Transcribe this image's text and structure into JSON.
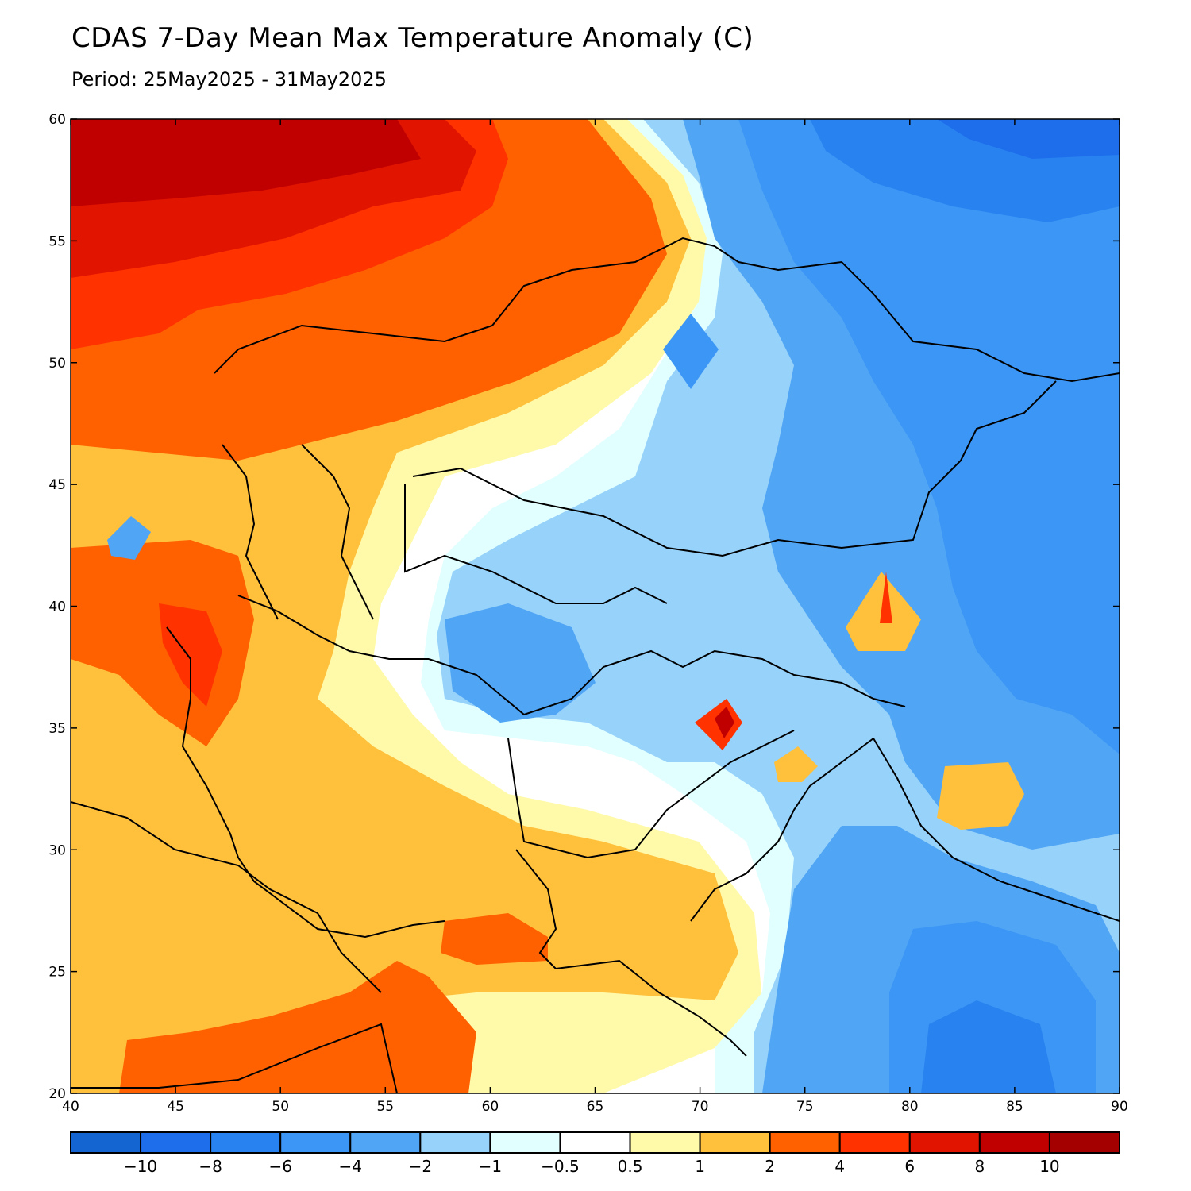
{
  "title": "CDAS 7-Day Mean Max Temperature Anomaly (C)",
  "subtitle": "Period: 25May2025 - 31May2025",
  "map": {
    "lon_range": [
      40,
      90
    ],
    "lat_range": [
      20,
      60
    ],
    "lon_ticks": [
      "40",
      "45",
      "50",
      "55",
      "60",
      "65",
      "70",
      "75",
      "80",
      "85",
      "90"
    ],
    "lat_ticks": [
      "20",
      "25",
      "30",
      "35",
      "40",
      "45",
      "50",
      "55",
      "60"
    ],
    "palette": {
      "n10": "#1464d2",
      "n8": "#1e6eeb",
      "n6": "#2882f0",
      "n4": "#3c96f5",
      "n2": "#50a5f5",
      "n1": "#96d2fa",
      "n05": "#e1ffff",
      "zero": "#ffffff",
      "p05": "#fffaaa",
      "p1": "#ffc03c",
      "p2": "#ff6000",
      "p4": "#ff3200",
      "p6": "#e11400",
      "p8": "#c00000",
      "p10": "#a50000"
    }
  },
  "colorbar": {
    "labels": [
      "−10",
      "−8",
      "−6",
      "−4",
      "−2",
      "−1",
      "−0.5",
      "0.5",
      "1",
      "2",
      "4",
      "6",
      "8",
      "10"
    ],
    "colors": [
      "#1464d2",
      "#1e6eeb",
      "#2882f0",
      "#3c96f5",
      "#50a5f5",
      "#96d2fa",
      "#e1ffff",
      "#ffffff",
      "#fffaaa",
      "#ffc03c",
      "#ff6000",
      "#ff3200",
      "#e11400",
      "#c00000",
      "#a50000"
    ]
  }
}
